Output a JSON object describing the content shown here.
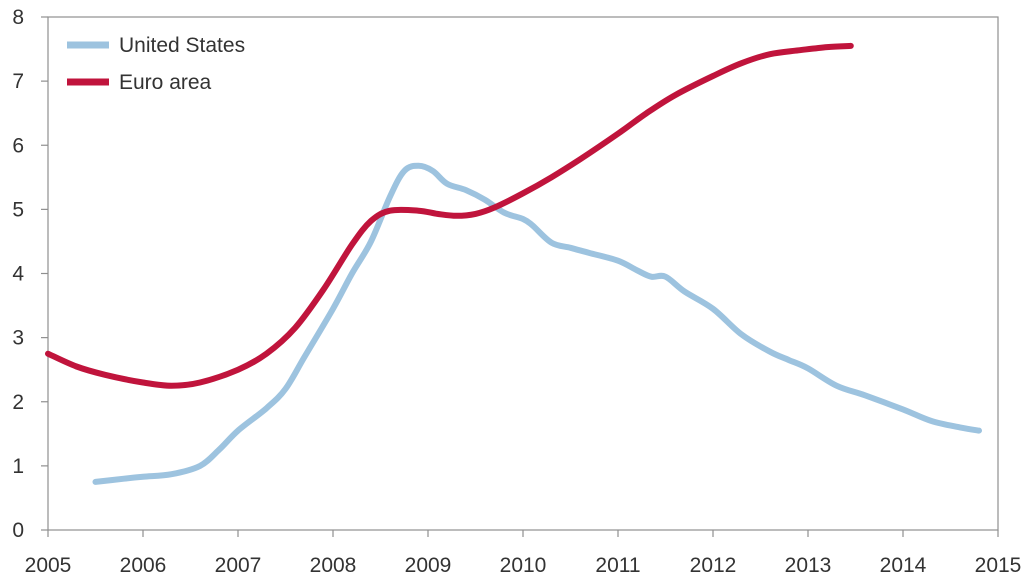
{
  "chart_data": {
    "type": "line",
    "title": "",
    "xlabel": "",
    "ylabel": "",
    "xlim": [
      2005,
      2015
    ],
    "ylim": [
      0,
      8
    ],
    "x_ticks": [
      2005,
      2006,
      2007,
      2008,
      2009,
      2010,
      2011,
      2012,
      2013,
      2014,
      2015
    ],
    "x_tick_labels": [
      "2005",
      "2006",
      "2007",
      "2008",
      "2009",
      "2010",
      "2011",
      "2012",
      "2013",
      "2014",
      "2015"
    ],
    "y_ticks": [
      0,
      1,
      2,
      3,
      4,
      5,
      6,
      7,
      8
    ],
    "y_tick_labels": [
      "0",
      "1",
      "2",
      "3",
      "4",
      "5",
      "6",
      "7",
      "8"
    ],
    "grid": false,
    "legend_position": "top-left",
    "series": [
      {
        "name": "United States",
        "color": "#9dc3df",
        "points": [
          [
            2005.5,
            0.75
          ],
          [
            2005.8,
            0.8
          ],
          [
            2006.0,
            0.83
          ],
          [
            2006.3,
            0.87
          ],
          [
            2006.6,
            1.0
          ],
          [
            2006.8,
            1.25
          ],
          [
            2007.0,
            1.55
          ],
          [
            2007.3,
            1.9
          ],
          [
            2007.5,
            2.2
          ],
          [
            2007.7,
            2.7
          ],
          [
            2008.0,
            3.45
          ],
          [
            2008.2,
            4.0
          ],
          [
            2008.4,
            4.5
          ],
          [
            2008.6,
            5.2
          ],
          [
            2008.75,
            5.6
          ],
          [
            2008.9,
            5.68
          ],
          [
            2009.05,
            5.6
          ],
          [
            2009.2,
            5.4
          ],
          [
            2009.4,
            5.3
          ],
          [
            2009.6,
            5.15
          ],
          [
            2009.8,
            4.95
          ],
          [
            2010.0,
            4.85
          ],
          [
            2010.1,
            4.75
          ],
          [
            2010.3,
            4.48
          ],
          [
            2010.5,
            4.4
          ],
          [
            2010.7,
            4.32
          ],
          [
            2011.0,
            4.2
          ],
          [
            2011.2,
            4.05
          ],
          [
            2011.35,
            3.95
          ],
          [
            2011.5,
            3.95
          ],
          [
            2011.7,
            3.72
          ],
          [
            2012.0,
            3.45
          ],
          [
            2012.3,
            3.05
          ],
          [
            2012.6,
            2.78
          ],
          [
            2012.8,
            2.65
          ],
          [
            2013.0,
            2.52
          ],
          [
            2013.3,
            2.25
          ],
          [
            2013.6,
            2.1
          ],
          [
            2014.0,
            1.88
          ],
          [
            2014.3,
            1.7
          ],
          [
            2014.6,
            1.6
          ],
          [
            2014.8,
            1.55
          ]
        ]
      },
      {
        "name": "Euro area",
        "color": "#c0143c",
        "points": [
          [
            2005.0,
            2.75
          ],
          [
            2005.3,
            2.55
          ],
          [
            2005.6,
            2.42
          ],
          [
            2006.0,
            2.3
          ],
          [
            2006.3,
            2.25
          ],
          [
            2006.6,
            2.3
          ],
          [
            2007.0,
            2.5
          ],
          [
            2007.3,
            2.75
          ],
          [
            2007.6,
            3.15
          ],
          [
            2007.9,
            3.75
          ],
          [
            2008.2,
            4.45
          ],
          [
            2008.4,
            4.82
          ],
          [
            2008.6,
            4.98
          ],
          [
            2008.9,
            4.98
          ],
          [
            2009.1,
            4.93
          ],
          [
            2009.3,
            4.9
          ],
          [
            2009.5,
            4.93
          ],
          [
            2009.7,
            5.03
          ],
          [
            2010.0,
            5.25
          ],
          [
            2010.3,
            5.5
          ],
          [
            2010.6,
            5.78
          ],
          [
            2011.0,
            6.18
          ],
          [
            2011.3,
            6.5
          ],
          [
            2011.6,
            6.78
          ],
          [
            2012.0,
            7.08
          ],
          [
            2012.3,
            7.28
          ],
          [
            2012.6,
            7.42
          ],
          [
            2012.9,
            7.48
          ],
          [
            2013.2,
            7.53
          ],
          [
            2013.45,
            7.55
          ]
        ]
      }
    ]
  }
}
